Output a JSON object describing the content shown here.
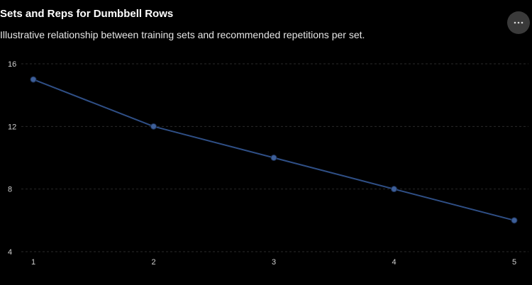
{
  "header": {
    "title": "Sets and Reps for Dumbbell Rows",
    "subtitle": "Illustrative relationship between training sets and recommended repetitions per set.",
    "menu_icon": "more-horizontal-icon"
  },
  "colors": {
    "background": "#000000",
    "line": "#2f4f86",
    "point": "#3d5f99",
    "grid": "#2a2a2a",
    "text": "#ffffff"
  },
  "chart_data": {
    "type": "line",
    "title": "Sets and Reps for Dumbbell Rows",
    "subtitle": "Illustrative relationship between training sets and recommended repetitions per set.",
    "xlabel": "",
    "ylabel": "",
    "x": [
      1,
      2,
      3,
      4,
      5
    ],
    "x_ticks": [
      "1",
      "2",
      "3",
      "4",
      "5"
    ],
    "y_ticks": [
      "4",
      "8",
      "12",
      "16"
    ],
    "ylim": [
      4,
      16
    ],
    "xlim": [
      1,
      5
    ],
    "grid": "horizontal dashed",
    "legend": "none",
    "series": [
      {
        "values": [
          15,
          12,
          10,
          8,
          6
        ]
      }
    ]
  }
}
